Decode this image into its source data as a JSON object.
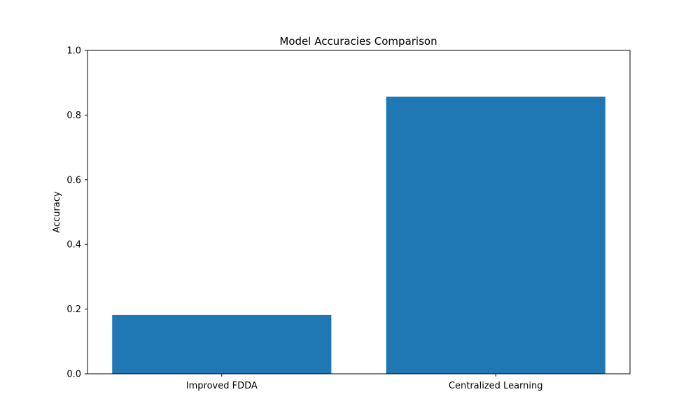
{
  "chart_data": {
    "type": "bar",
    "title": "Model Accuracies Comparison",
    "xlabel": "",
    "ylabel": "Accuracy",
    "categories": [
      "Improved FDDA",
      "Centralized Learning"
    ],
    "values": [
      0.182,
      0.857
    ],
    "ylim": [
      0,
      1.0
    ],
    "yticks": [
      0.0,
      0.2,
      0.4,
      0.6,
      0.8,
      1.0
    ],
    "ytick_labels": [
      "0.0",
      "0.2",
      "0.4",
      "0.6",
      "0.8",
      "1.0"
    ],
    "bar_color": "#1f77b4",
    "grid": false,
    "legend": "none"
  }
}
